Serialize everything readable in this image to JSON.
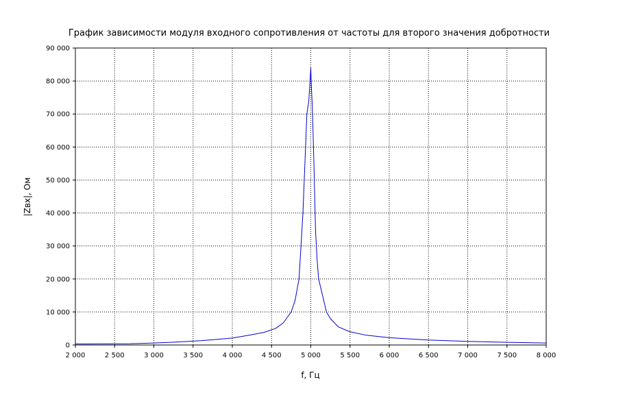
{
  "chart_data": {
    "type": "line",
    "title": "График зависимости модуля входного сопротивления от частоты для второго значения добротности",
    "xlabel": "f, Гц",
    "ylabel": "|Zвх|, Ом",
    "xlim": [
      2000,
      8000
    ],
    "ylim": [
      0,
      90000
    ],
    "grid": true,
    "x_ticks": [
      {
        "value": 2000,
        "label": "2 000"
      },
      {
        "value": 2500,
        "label": "2 500"
      },
      {
        "value": 3000,
        "label": "3 000"
      },
      {
        "value": 3500,
        "label": "3 500"
      },
      {
        "value": 4000,
        "label": "4 000"
      },
      {
        "value": 4500,
        "label": "4 500"
      },
      {
        "value": 5000,
        "label": "5 000"
      },
      {
        "value": 5500,
        "label": "5 500"
      },
      {
        "value": 6000,
        "label": "6 000"
      },
      {
        "value": 6500,
        "label": "6 500"
      },
      {
        "value": 7000,
        "label": "7 000"
      },
      {
        "value": 7500,
        "label": "7 500"
      },
      {
        "value": 8000,
        "label": "8 000"
      }
    ],
    "y_ticks": [
      {
        "value": 0,
        "label": "0"
      },
      {
        "value": 10000,
        "label": "10 000"
      },
      {
        "value": 20000,
        "label": "20 000"
      },
      {
        "value": 30000,
        "label": "30 000"
      },
      {
        "value": 40000,
        "label": "40 000"
      },
      {
        "value": 50000,
        "label": "50 000"
      },
      {
        "value": 60000,
        "label": "60 000"
      },
      {
        "value": 70000,
        "label": "70 000"
      },
      {
        "value": 80000,
        "label": "80 000"
      },
      {
        "value": 90000,
        "label": "90 000"
      }
    ],
    "series": [
      {
        "color": "#0000cc",
        "x": [
          2000,
          2700,
          3000,
          3300,
          3600,
          3800,
          4000,
          4200,
          4400,
          4550,
          4650,
          4750,
          4800,
          4850,
          4900,
          4950,
          4975,
          4985,
          4990,
          5000,
          5005,
          5010,
          5020,
          5040,
          5060,
          5080,
          5100,
          5150,
          5200,
          5250,
          5350,
          5500,
          5700,
          6000,
          6500,
          7000,
          7500,
          8000
        ],
        "y": [
          300,
          400,
          600,
          900,
          1300,
          1700,
          2100,
          2900,
          3800,
          5000,
          6700,
          10000,
          13500,
          20000,
          40000,
          70000,
          74000,
          78000,
          80000,
          84000,
          80000,
          77000,
          72000,
          55000,
          35000,
          26000,
          20000,
          15000,
          10000,
          8000,
          5500,
          4000,
          3000,
          2200,
          1500,
          1100,
          800,
          600
        ]
      }
    ]
  }
}
